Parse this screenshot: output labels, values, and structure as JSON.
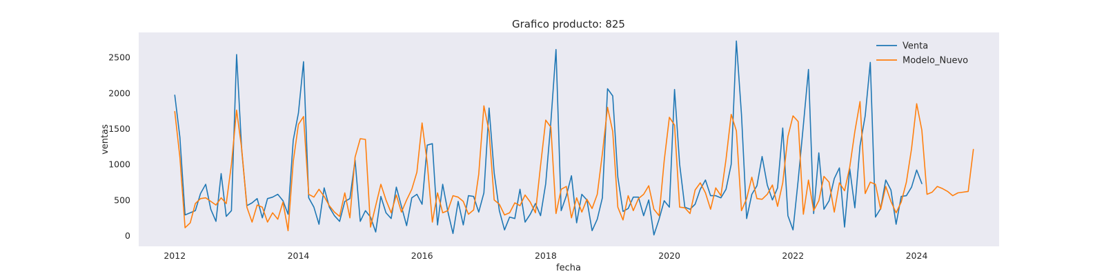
{
  "chart_data": {
    "type": "line",
    "title": "Grafico producto: 825",
    "xlabel": "fecha",
    "ylabel": "ventas",
    "xlim": [
      "2011-06-01",
      "2025-05-01"
    ],
    "ylim": [
      -150,
      2850
    ],
    "x_ticks": [
      "2012",
      "2014",
      "2016",
      "2018",
      "2020",
      "2022",
      "2024"
    ],
    "y_ticks": [
      0,
      500,
      1000,
      1500,
      2000,
      2500
    ],
    "grid": false,
    "legend_position": "top-right",
    "series": [
      {
        "name": "Venta",
        "color": "#1f77b4",
        "start": "2012-01",
        "values": [
          1970,
          1380,
          290,
          320,
          350,
          590,
          720,
          370,
          200,
          870,
          270,
          350,
          2540,
          1200,
          420,
          460,
          520,
          250,
          520,
          540,
          580,
          490,
          300,
          1340,
          1720,
          2440,
          530,
          400,
          160,
          670,
          400,
          280,
          200,
          480,
          520,
          1060,
          200,
          350,
          260,
          50,
          550,
          320,
          240,
          680,
          410,
          140,
          530,
          580,
          440,
          1270,
          1290,
          150,
          720,
          340,
          30,
          480,
          150,
          560,
          550,
          330,
          600,
          1790,
          880,
          350,
          80,
          260,
          240,
          650,
          190,
          300,
          450,
          280,
          730,
          1600,
          2610,
          350,
          560,
          840,
          180,
          580,
          500,
          70,
          230,
          530,
          2060,
          1960,
          820,
          340,
          380,
          540,
          540,
          280,
          500,
          10,
          230,
          490,
          400,
          2050,
          1000,
          400,
          370,
          440,
          650,
          780,
          560,
          560,
          530,
          650,
          1000,
          2730,
          1700,
          240,
          580,
          700,
          1110,
          710,
          500,
          670,
          1510,
          280,
          80,
          780,
          1550,
          2330,
          310,
          1160,
          370,
          490,
          800,
          950,
          120,
          940,
          390,
          1260,
          1680,
          2430,
          260,
          380,
          780,
          640,
          160,
          550,
          560,
          680,
          920,
          730
        ]
      },
      {
        "name": "Modelo_Nuevo",
        "color": "#ff7f0e",
        "start": "2012-01",
        "values": [
          1740,
          1100,
          110,
          180,
          450,
          520,
          530,
          480,
          430,
          530,
          450,
          1000,
          1760,
          1220,
          400,
          190,
          430,
          400,
          190,
          320,
          230,
          470,
          70,
          1040,
          1560,
          1670,
          580,
          540,
          650,
          550,
          420,
          330,
          270,
          600,
          250,
          1100,
          1360,
          1350,
          120,
          420,
          720,
          500,
          320,
          570,
          330,
          500,
          650,
          890,
          1580,
          1020,
          190,
          600,
          320,
          350,
          560,
          540,
          480,
          300,
          360,
          860,
          1820,
          1460,
          500,
          440,
          290,
          320,
          460,
          420,
          570,
          470,
          320,
          980,
          1620,
          1520,
          310,
          650,
          690,
          250,
          530,
          330,
          510,
          380,
          580,
          1150,
          1800,
          1460,
          400,
          220,
          560,
          350,
          520,
          580,
          700,
          370,
          280,
          1050,
          1660,
          1550,
          400,
          390,
          310,
          640,
          740,
          600,
          370,
          670,
          560,
          1070,
          1700,
          1470,
          350,
          520,
          820,
          520,
          510,
          580,
          710,
          410,
          740,
          1390,
          1680,
          1600,
          300,
          780,
          350,
          490,
          830,
          750,
          330,
          740,
          630,
          960,
          1460,
          1880,
          590,
          750,
          720,
          370,
          690,
          480,
          320,
          470,
          750,
          1220,
          1850,
          1480,
          580,
          610,
          690,
          660,
          620,
          560,
          600,
          610,
          620,
          1210
        ]
      }
    ]
  }
}
